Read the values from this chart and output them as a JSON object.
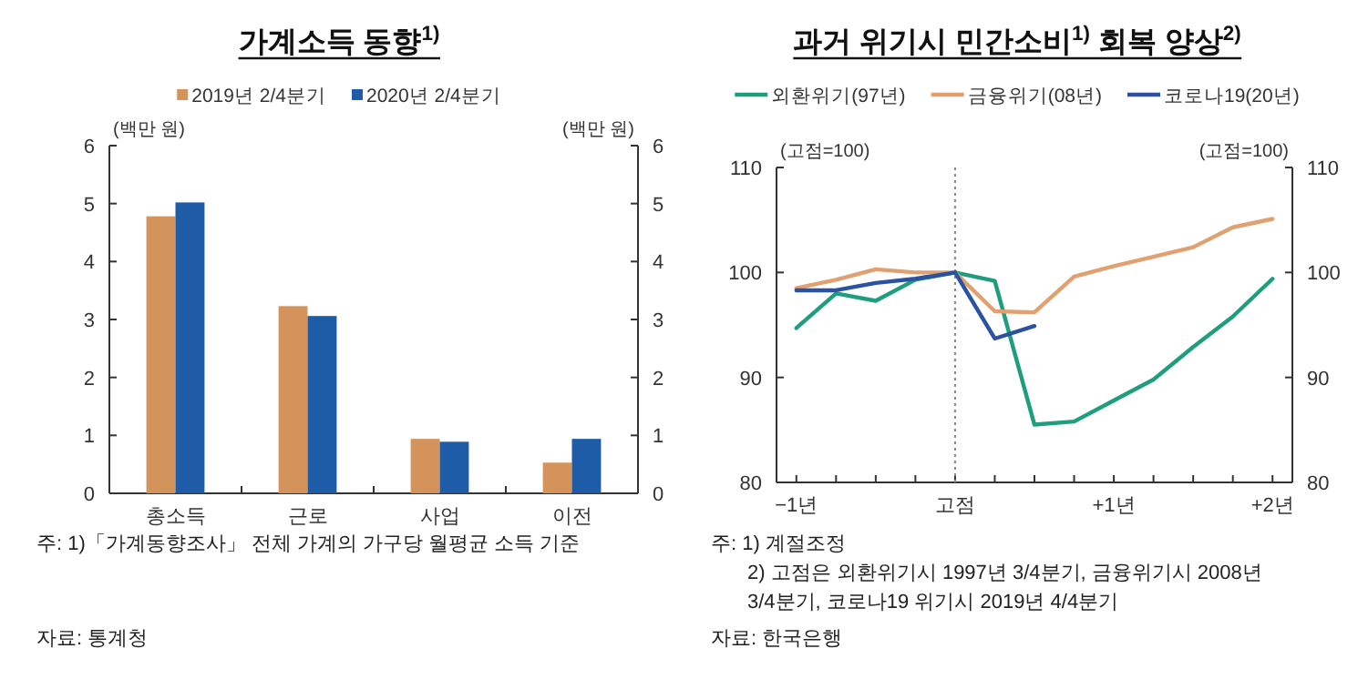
{
  "chart_data": [
    {
      "type": "bar",
      "title": "가계소득 동향$^{1)}$",
      "categories": [
        "총소득",
        "근로",
        "사업",
        "이전"
      ],
      "series": [
        {
          "name": "2019년 2/4분기",
          "color": "#d4935a",
          "values": [
            4.78,
            3.23,
            0.94,
            0.53
          ]
        },
        {
          "name": "2020년 2/4분기",
          "color": "#1f5ca8",
          "values": [
            5.02,
            3.06,
            0.89,
            0.94
          ]
        }
      ],
      "ylabel": "(백만 원)",
      "y2label": "(백만 원)",
      "ylim": [
        0,
        6
      ],
      "yticks": [
        0,
        1,
        2,
        3,
        4,
        5,
        6
      ],
      "y2lim": [
        0,
        6
      ],
      "y2ticks": [
        0,
        1,
        2,
        3,
        4,
        5,
        6
      ],
      "legend": "top",
      "grid": false,
      "annotations": [
        "주: 1)「가계동향조사」 전체 가계의 가구당 월평균 소득 기준",
        "자료: 통계청"
      ]
    },
    {
      "type": "line",
      "title": "과거 위기시 민간소비$^{1)}$ 회복 양상$^{2)}$",
      "series": [
        {
          "name": "외환위기(97년)",
          "color": "#1f9e7e",
          "x": [
            -1,
            -0.75,
            -0.5,
            -0.25,
            0,
            0.25,
            0.5,
            0.75,
            1,
            1.25,
            1.5,
            1.75,
            2
          ],
          "values": [
            94.7,
            98.0,
            97.3,
            99.3,
            100,
            99.2,
            85.5,
            85.8,
            87.8,
            89.8,
            92.9,
            95.8,
            99.4
          ]
        },
        {
          "name": "금융위기(08년)",
          "color": "#e0a070",
          "x": [
            -1,
            -0.75,
            -0.5,
            -0.25,
            0,
            0.25,
            0.5,
            0.75,
            1,
            1.25,
            1.5,
            1.75,
            2
          ],
          "values": [
            98.5,
            99.3,
            100.3,
            100.0,
            100,
            96.3,
            96.2,
            99.6,
            100.6,
            101.5,
            102.4,
            104.3,
            105.1
          ]
        },
        {
          "name": "코로나19(20년)",
          "color": "#2a52a0",
          "x": [
            -1,
            -0.75,
            -0.5,
            -0.25,
            0,
            0.25,
            0.5
          ],
          "values": [
            98.3,
            98.3,
            99.0,
            99.4,
            100,
            93.7,
            94.9
          ]
        }
      ],
      "xlim": [
        -1.125,
        2.125
      ],
      "xticks": [
        {
          "value": -1,
          "label": "−1년"
        },
        {
          "value": -0.75,
          "label": null
        },
        {
          "value": -0.5,
          "label": null
        },
        {
          "value": -0.25,
          "label": null
        },
        {
          "value": 0,
          "label": "고점"
        },
        {
          "value": 0.25,
          "label": null
        },
        {
          "value": 0.5,
          "label": null
        },
        {
          "value": 0.75,
          "label": null
        },
        {
          "value": 1,
          "label": "+1년"
        },
        {
          "value": 1.25,
          "label": null
        },
        {
          "value": 1.5,
          "label": null
        },
        {
          "value": 1.75,
          "label": null
        },
        {
          "value": 2,
          "label": "+2년"
        }
      ],
      "ylabel": "(고점=100)",
      "y2label": "(고점=100)",
      "ylim": [
        80,
        110
      ],
      "yticks": [
        80,
        90,
        100,
        110
      ],
      "y2lim": [
        80,
        110
      ],
      "y2ticks": [
        80,
        90,
        100,
        110
      ],
      "ref_lines": [
        {
          "axis": "x",
          "value": 0,
          "color": "#888888",
          "line_style": "dotted"
        }
      ],
      "legend": "top",
      "grid": false,
      "annotations": [
        "주: 1) 계절조정",
        "2) 고점은 외환위기시 1997년 3/4분기, 금융위기시 2008년 3/4분기, 코로나19 위기시 2019년 4/4분기",
        "자료: 한국은행"
      ]
    }
  ]
}
